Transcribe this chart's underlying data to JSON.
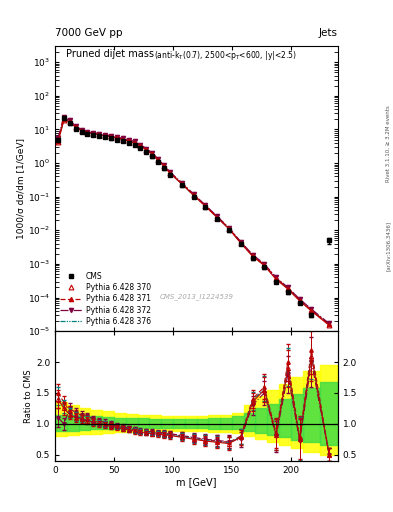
{
  "title_top": "7000 GeV pp",
  "title_right": "Jets",
  "main_title": "Pruned dijet mass",
  "ylabel_main": "1000/σ dσ/dm [1/GeV]",
  "ylabel_ratio": "Ratio to CMS",
  "xlabel": "m [GeV]",
  "watermark": "CMS_2013_I1224539",
  "right_label1": "Rivet 3.1.10, ≥ 3.2M events",
  "right_label2": "[arXiv:1306.3436]",
  "cms_x": [
    2.5,
    7.5,
    12.5,
    17.5,
    22.5,
    27.5,
    32.5,
    37.5,
    42.5,
    47.5,
    52.5,
    57.5,
    62.5,
    67.5,
    72.5,
    77.5,
    82.5,
    87.5,
    92.5,
    97.5,
    107.5,
    117.5,
    127.5,
    137.5,
    147.5,
    157.5,
    167.5,
    177.5,
    187.5,
    197.5,
    207.5,
    217.5,
    232.5
  ],
  "cms_y": [
    5.0,
    22.0,
    15.0,
    10.5,
    8.5,
    7.5,
    7.0,
    6.5,
    6.0,
    5.5,
    5.0,
    4.5,
    4.0,
    3.5,
    2.8,
    2.2,
    1.6,
    1.1,
    0.7,
    0.45,
    0.22,
    0.1,
    0.048,
    0.022,
    0.01,
    0.004,
    0.0015,
    0.0008,
    0.0003,
    0.00015,
    7e-05,
    3e-05,
    0.005
  ],
  "cms_yerr": [
    0.5,
    2.0,
    1.5,
    1.0,
    0.8,
    0.7,
    0.6,
    0.6,
    0.5,
    0.5,
    0.4,
    0.4,
    0.35,
    0.3,
    0.25,
    0.2,
    0.15,
    0.1,
    0.07,
    0.04,
    0.02,
    0.01,
    0.005,
    0.002,
    0.001,
    0.0004,
    0.00015,
    8e-05,
    3e-05,
    2e-05,
    7e-06,
    4e-06,
    0.001
  ],
  "py370_y": [
    4.2,
    19.0,
    17.0,
    11.5,
    9.2,
    8.0,
    7.5,
    7.0,
    6.5,
    6.0,
    5.5,
    5.0,
    4.5,
    4.0,
    3.2,
    2.5,
    1.8,
    1.2,
    0.8,
    0.5,
    0.24,
    0.11,
    0.052,
    0.024,
    0.011,
    0.0042,
    0.0017,
    0.0009,
    0.00035,
    0.00018,
    8e-05,
    4e-05,
    1.5e-05
  ],
  "py371_y": [
    4.5,
    21.0,
    18.0,
    12.0,
    9.5,
    8.2,
    7.8,
    7.2,
    6.8,
    6.2,
    5.7,
    5.2,
    4.7,
    4.2,
    3.3,
    2.6,
    1.9,
    1.25,
    0.82,
    0.52,
    0.25,
    0.115,
    0.054,
    0.025,
    0.0115,
    0.0044,
    0.0018,
    0.00095,
    0.00038,
    0.00019,
    8.5e-05,
    4.2e-05,
    1.6e-05
  ],
  "py372_y": [
    5.5,
    24.0,
    18.5,
    12.5,
    9.8,
    8.5,
    8.0,
    7.5,
    7.0,
    6.5,
    5.9,
    5.4,
    4.9,
    4.4,
    3.5,
    2.7,
    2.0,
    1.3,
    0.85,
    0.54,
    0.26,
    0.12,
    0.056,
    0.026,
    0.012,
    0.0046,
    0.0019,
    0.001,
    0.0004,
    0.0002,
    9e-05,
    4.5e-05,
    1.7e-05
  ],
  "py376_y": [
    4.3,
    19.5,
    17.2,
    11.8,
    9.3,
    8.1,
    7.6,
    7.1,
    6.6,
    6.1,
    5.6,
    5.1,
    4.6,
    4.1,
    3.25,
    2.55,
    1.85,
    1.22,
    0.79,
    0.5,
    0.24,
    0.11,
    0.053,
    0.0245,
    0.0112,
    0.0043,
    0.00175,
    0.00092,
    0.00036,
    0.000185,
    8.2e-05,
    4.1e-05,
    1.6e-05
  ],
  "ratio370_y": [
    1.4,
    1.25,
    1.15,
    1.1,
    1.08,
    1.05,
    1.02,
    1.0,
    0.98,
    0.96,
    0.94,
    0.92,
    0.9,
    0.88,
    0.86,
    0.85,
    0.84,
    0.83,
    0.82,
    0.81,
    0.78,
    0.75,
    0.72,
    0.7,
    0.68,
    0.78,
    1.35,
    1.55,
    0.82,
    1.9,
    0.75,
    2.1,
    0.5
  ],
  "ratio371_y": [
    1.5,
    1.35,
    1.2,
    1.15,
    1.1,
    1.08,
    1.05,
    1.02,
    1.0,
    0.98,
    0.96,
    0.94,
    0.92,
    0.9,
    0.88,
    0.87,
    0.86,
    0.85,
    0.84,
    0.83,
    0.8,
    0.77,
    0.74,
    0.72,
    0.7,
    0.8,
    1.4,
    1.6,
    0.85,
    2.0,
    0.78,
    2.2,
    0.5
  ],
  "ratio372_y": [
    1.1,
    1.0,
    1.25,
    1.18,
    1.14,
    1.12,
    1.08,
    1.05,
    1.02,
    0.99,
    0.97,
    0.95,
    0.93,
    0.91,
    0.89,
    0.88,
    0.87,
    0.86,
    0.85,
    0.84,
    0.81,
    0.78,
    0.75,
    0.73,
    0.71,
    0.75,
    1.3,
    1.5,
    0.8,
    1.8,
    0.72,
    2.0,
    0.5
  ],
  "ratio376_y": [
    1.45,
    1.28,
    1.17,
    1.12,
    1.09,
    1.06,
    1.03,
    1.01,
    0.99,
    0.97,
    0.95,
    0.93,
    0.91,
    0.89,
    0.87,
    0.86,
    0.85,
    0.84,
    0.83,
    0.82,
    0.79,
    0.76,
    0.73,
    0.71,
    0.69,
    0.79,
    1.37,
    1.57,
    0.83,
    1.92,
    0.76,
    2.12,
    0.5
  ],
  "ratio370_err": [
    0.15,
    0.1,
    0.08,
    0.07,
    0.06,
    0.06,
    0.05,
    0.05,
    0.05,
    0.05,
    0.04,
    0.04,
    0.04,
    0.04,
    0.04,
    0.04,
    0.04,
    0.04,
    0.05,
    0.05,
    0.06,
    0.07,
    0.08,
    0.09,
    0.1,
    0.12,
    0.15,
    0.2,
    0.25,
    0.3,
    0.35,
    0.4,
    0.1
  ],
  "ratio371_err": [
    0.15,
    0.1,
    0.08,
    0.07,
    0.06,
    0.06,
    0.05,
    0.05,
    0.05,
    0.05,
    0.04,
    0.04,
    0.04,
    0.04,
    0.04,
    0.04,
    0.04,
    0.04,
    0.05,
    0.05,
    0.06,
    0.07,
    0.08,
    0.09,
    0.1,
    0.12,
    0.15,
    0.2,
    0.25,
    0.3,
    0.35,
    0.4,
    0.1
  ],
  "ratio372_err": [
    0.15,
    0.1,
    0.08,
    0.07,
    0.06,
    0.06,
    0.05,
    0.05,
    0.05,
    0.05,
    0.04,
    0.04,
    0.04,
    0.04,
    0.04,
    0.04,
    0.04,
    0.04,
    0.05,
    0.05,
    0.06,
    0.07,
    0.08,
    0.09,
    0.1,
    0.12,
    0.15,
    0.2,
    0.25,
    0.3,
    0.35,
    0.4,
    0.1
  ],
  "ratio376_err": [
    0.15,
    0.1,
    0.08,
    0.07,
    0.06,
    0.06,
    0.05,
    0.05,
    0.05,
    0.05,
    0.04,
    0.04,
    0.04,
    0.04,
    0.04,
    0.04,
    0.04,
    0.04,
    0.05,
    0.05,
    0.06,
    0.07,
    0.08,
    0.09,
    0.1,
    0.12,
    0.15,
    0.2,
    0.25,
    0.3,
    0.35,
    0.4,
    0.1
  ],
  "xmin": 0,
  "xmax": 240,
  "ylim_main": [
    1e-05,
    3000
  ],
  "ylim_ratio": [
    0.4,
    2.5
  ],
  "color_370": "#c00000",
  "color_371": "#c00000",
  "color_372": "#800040",
  "color_376": "#008080"
}
